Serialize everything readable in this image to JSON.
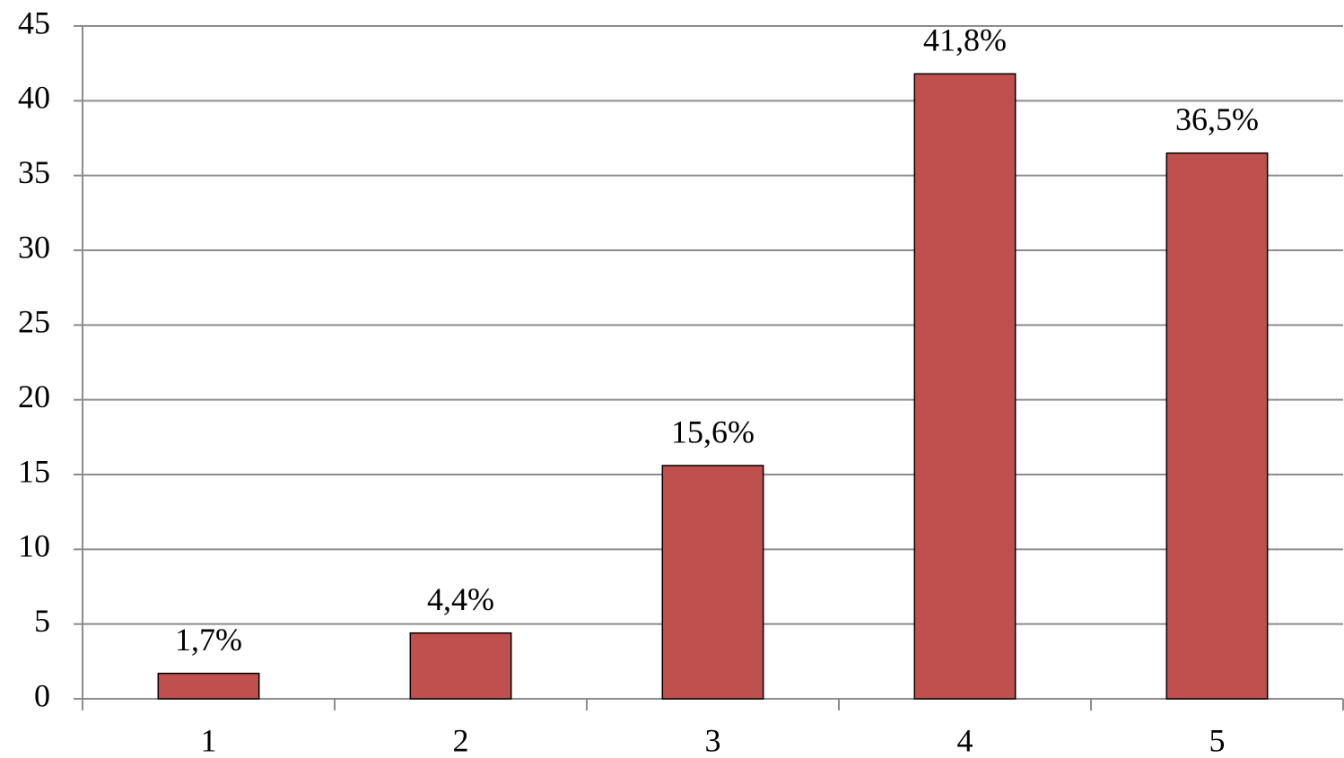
{
  "chart_data": {
    "type": "bar",
    "categories": [
      "1",
      "2",
      "3",
      "4",
      "5"
    ],
    "values": [
      1.7,
      4.4,
      15.6,
      41.8,
      36.5
    ],
    "value_labels": [
      "1,7%",
      "4,4%",
      "15,6%",
      "41,8%",
      "36,5%"
    ],
    "color": "#c0504d",
    "ylim": [
      0,
      45
    ],
    "yticks": [
      0,
      5,
      10,
      15,
      20,
      25,
      30,
      35,
      40,
      45
    ],
    "grid": true
  }
}
